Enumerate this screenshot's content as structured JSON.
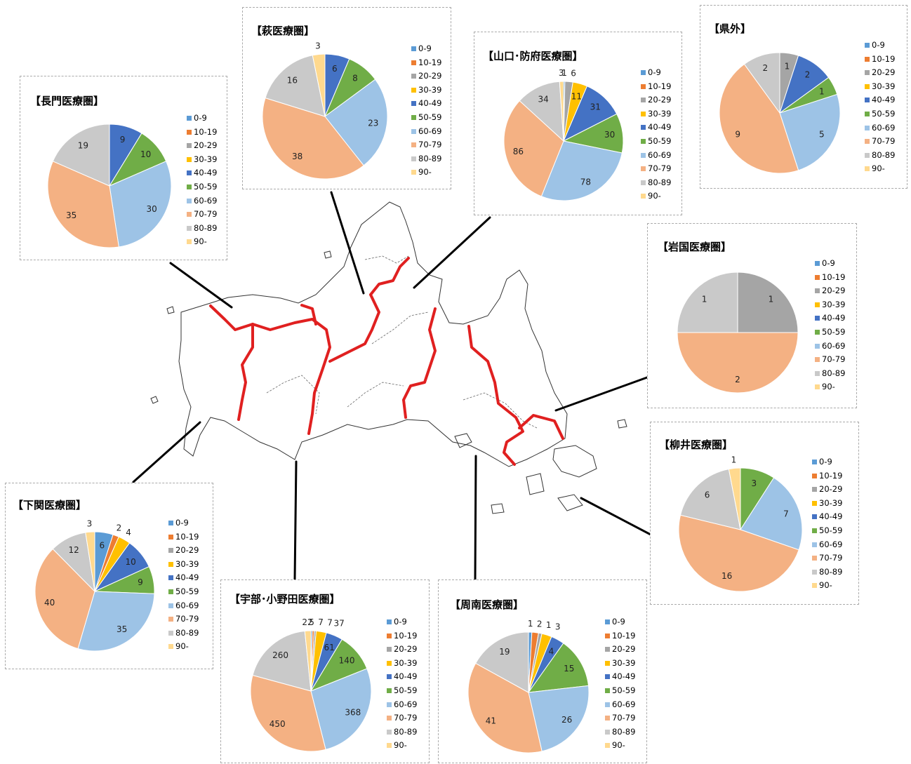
{
  "legend_labels": [
    "0-9",
    "10-19",
    "20-29",
    "30-39",
    "40-49",
    "50-59",
    "60-69",
    "70-79",
    "80-89",
    "90-"
  ],
  "colors": [
    "#5b9bd5",
    "#ed7d31",
    "#a5a5a5",
    "#ffc000",
    "#4472c4",
    "#70ad47",
    "#9dc3e6",
    "#f4b183",
    "#c9c9c9",
    "#ffd98e"
  ],
  "chart_data": [
    {
      "type": "pie",
      "title": "【長門医療圏】",
      "categories": [
        "0-9",
        "10-19",
        "20-29",
        "30-39",
        "40-49",
        "50-59",
        "60-69",
        "70-79",
        "80-89",
        "90-"
      ],
      "values": [
        0,
        0,
        0,
        0,
        9,
        10,
        30,
        35,
        19,
        0
      ]
    },
    {
      "type": "pie",
      "title": "【萩医療圏】",
      "categories": [
        "0-9",
        "10-19",
        "20-29",
        "30-39",
        "40-49",
        "50-59",
        "60-69",
        "70-79",
        "80-89",
        "90-"
      ],
      "values": [
        0,
        0,
        0,
        0,
        6,
        8,
        23,
        38,
        16,
        3
      ]
    },
    {
      "type": "pie",
      "title": "【山口･防府医療圏】",
      "categories": [
        "0-9",
        "10-19",
        "20-29",
        "30-39",
        "40-49",
        "50-59",
        "60-69",
        "70-79",
        "80-89",
        "90-"
      ],
      "values": [
        1,
        0,
        6,
        11,
        31,
        30,
        78,
        86,
        34,
        3
      ]
    },
    {
      "type": "pie",
      "title": "【県外】",
      "categories": [
        "0-9",
        "10-19",
        "20-29",
        "30-39",
        "40-49",
        "50-59",
        "60-69",
        "70-79",
        "80-89",
        "90-"
      ],
      "values": [
        0,
        0,
        1,
        0,
        2,
        1,
        5,
        9,
        2,
        0
      ]
    },
    {
      "type": "pie",
      "title": "【岩国医療圏】",
      "categories": [
        "0-9",
        "10-19",
        "20-29",
        "30-39",
        "40-49",
        "50-59",
        "60-69",
        "70-79",
        "80-89",
        "90-"
      ],
      "values": [
        0,
        0,
        1,
        0,
        0,
        0,
        0,
        2,
        1,
        0
      ]
    },
    {
      "type": "pie",
      "title": "【柳井医療圏】",
      "categories": [
        "0-9",
        "10-19",
        "20-29",
        "30-39",
        "40-49",
        "50-59",
        "60-69",
        "70-79",
        "80-89",
        "90-"
      ],
      "values": [
        0,
        0,
        0,
        0,
        0,
        3,
        7,
        16,
        6,
        1
      ]
    },
    {
      "type": "pie",
      "title": "【下関医療圏】",
      "categories": [
        "0-9",
        "10-19",
        "20-29",
        "30-39",
        "40-49",
        "50-59",
        "60-69",
        "70-79",
        "80-89",
        "90-"
      ],
      "values": [
        6,
        2,
        0,
        4,
        10,
        9,
        35,
        40,
        12,
        3
      ]
    },
    {
      "type": "pie",
      "title": "【宇部･小野田医療圏】",
      "categories": [
        "0-9",
        "10-19",
        "20-29",
        "30-39",
        "40-49",
        "50-59",
        "60-69",
        "70-79",
        "80-89",
        "90-"
      ],
      "values": [
        5,
        7,
        7,
        37,
        61,
        140,
        368,
        450,
        260,
        22
      ]
    },
    {
      "type": "pie",
      "title": "【周南医療圏】",
      "categories": [
        "0-9",
        "10-19",
        "20-29",
        "30-39",
        "40-49",
        "50-59",
        "60-69",
        "70-79",
        "80-89",
        "90-"
      ],
      "values": [
        1,
        2,
        1,
        3,
        4,
        15,
        26,
        41,
        19,
        0
      ]
    }
  ]
}
